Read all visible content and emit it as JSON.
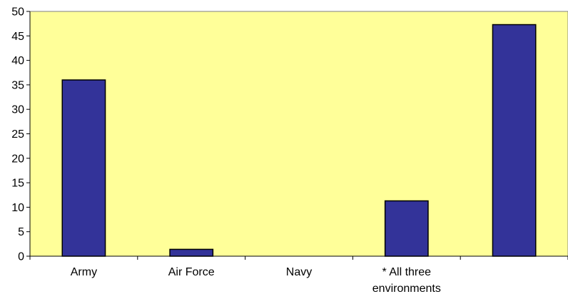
{
  "chart_data": {
    "type": "bar",
    "categories": [
      "Army",
      "Air Force",
      "Navy",
      "* All three environments",
      ""
    ],
    "category_label_lines": [
      [
        "Army"
      ],
      [
        "Air Force"
      ],
      [
        "Navy"
      ],
      [
        "* All three",
        "environments"
      ],
      []
    ],
    "values": [
      36,
      1.4,
      0,
      11.3,
      47.3
    ],
    "ylim": [
      0,
      50
    ],
    "yticks": [
      0,
      5,
      10,
      15,
      20,
      25,
      30,
      35,
      40,
      45,
      50
    ],
    "grid": false,
    "legend": "none",
    "colors": {
      "plot_background": "#ffff99",
      "bar_fill": "#333399",
      "bar_stroke": "#000000"
    }
  }
}
